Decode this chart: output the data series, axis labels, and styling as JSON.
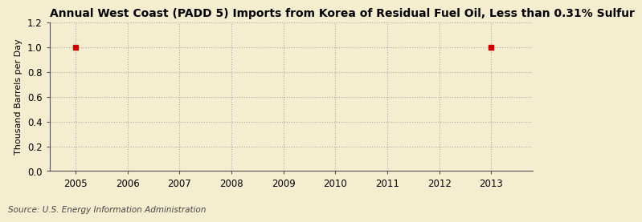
{
  "title": "Annual West Coast (PADD 5) Imports from Korea of Residual Fuel Oil, Less than 0.31% Sulfur",
  "ylabel": "Thousand Barrels per Day",
  "source": "Source: U.S. Energy Information Administration",
  "background_color": "#f5edcf",
  "plot_background_color": "#f5edcf",
  "data_x": [
    2005,
    2013
  ],
  "data_y": [
    1.0,
    1.0
  ],
  "marker_color": "#cc0000",
  "marker_size": 4,
  "xlim": [
    2004.5,
    2013.8
  ],
  "ylim": [
    0.0,
    1.2
  ],
  "yticks": [
    0.0,
    0.2,
    0.4,
    0.6,
    0.8,
    1.0,
    1.2
  ],
  "xticks": [
    2005,
    2006,
    2007,
    2008,
    2009,
    2010,
    2011,
    2012,
    2013
  ],
  "grid_color": "#aaaaaa",
  "grid_linestyle": ":",
  "title_fontsize": 10,
  "label_fontsize": 8,
  "tick_fontsize": 8.5,
  "source_fontsize": 7.5
}
